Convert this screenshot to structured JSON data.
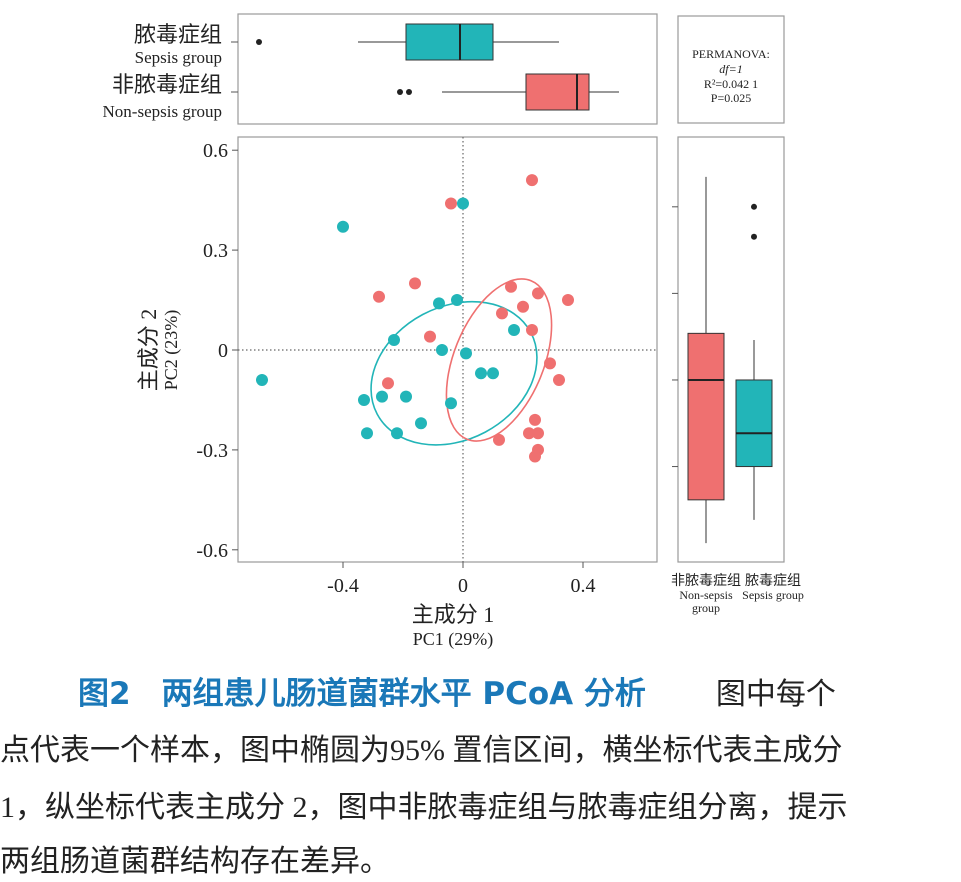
{
  "colors": {
    "sepsis": "#22b5b8",
    "nonsepsis": "#ef7070",
    "frame": "#9a9a9a",
    "caption_title": "#1a78b8"
  },
  "top_box": {
    "sepsis_cn": "脓毒症组",
    "sepsis_en": "Sepsis group",
    "nonsepsis_cn": "非脓毒症组",
    "nonsepsis_en": "Non-sepsis group"
  },
  "stats": {
    "title": "PERMANOVA:",
    "df": "df=1",
    "r2": "R²=0.042 1",
    "p": "P=0.025"
  },
  "axis": {
    "x_cn": "主成分 1",
    "x_en": "PC1 (29%)",
    "y_cn": "主成分 2",
    "y_en": "PC2 (23%)"
  },
  "right_box": {
    "nonsepsis_cn": "非脓毒症组",
    "nonsepsis_en1": "Non-sepsis",
    "nonsepsis_en2": "group",
    "sepsis_cn": "脓毒症组",
    "sepsis_en": "Sepsis group"
  },
  "caption": {
    "title": "图2　两组患儿肠道菌群水平 PCoA 分析",
    "line1_tail": "图中每个",
    "line2": "点代表一个样本，图中椭圆为95% 置信区间，横坐标代表主成分",
    "line3": "1，纵坐标代表主成分 2，图中非脓毒症组与脓毒症组分离，提示",
    "line4": "两组肠道菌群结构存在差异。"
  },
  "chart_data": {
    "type": "scatter",
    "xlabel": "主成分 1 PC1 (29%)",
    "ylabel": "主成分 2 PC2 (23%)",
    "xlim": [
      -0.68,
      0.72
    ],
    "ylim": [
      -0.64,
      0.64
    ],
    "xticks": [
      "-0.4",
      "0",
      "0.4"
    ],
    "xtick_values": [
      -0.4,
      0,
      0.4
    ],
    "yticks": [
      "0.6",
      "0.3",
      "0",
      "-0.3",
      "-0.6"
    ],
    "ytick_values": [
      0.6,
      0.3,
      0,
      -0.3,
      -0.6
    ],
    "series": [
      {
        "name": "Sepsis group",
        "color": "#22b5b8",
        "points": [
          [
            -0.4,
            0.37
          ],
          [
            0.0,
            0.44
          ],
          [
            -0.08,
            0.14
          ],
          [
            -0.02,
            0.15
          ],
          [
            -0.23,
            0.03
          ],
          [
            -0.07,
            0.0
          ],
          [
            0.01,
            -0.01
          ],
          [
            0.17,
            0.06
          ],
          [
            0.06,
            -0.07
          ],
          [
            0.1,
            -0.07
          ],
          [
            -0.67,
            -0.09
          ],
          [
            -0.33,
            -0.15
          ],
          [
            -0.27,
            -0.14
          ],
          [
            -0.19,
            -0.14
          ],
          [
            -0.04,
            -0.16
          ],
          [
            -0.14,
            -0.22
          ],
          [
            -0.32,
            -0.25
          ],
          [
            -0.22,
            -0.25
          ]
        ],
        "ellipse": {
          "cx": -0.03,
          "cy": -0.07,
          "rx": 0.58,
          "ry": 0.4,
          "angle_deg": -28
        }
      },
      {
        "name": "Non-sepsis group",
        "color": "#ef7070",
        "points": [
          [
            0.23,
            0.51
          ],
          [
            -0.04,
            0.44
          ],
          [
            -0.16,
            0.2
          ],
          [
            -0.28,
            0.16
          ],
          [
            0.16,
            0.19
          ],
          [
            0.25,
            0.17
          ],
          [
            0.35,
            0.15
          ],
          [
            0.2,
            0.13
          ],
          [
            0.13,
            0.11
          ],
          [
            0.23,
            0.06
          ],
          [
            -0.11,
            0.04
          ],
          [
            0.29,
            -0.04
          ],
          [
            0.32,
            -0.09
          ],
          [
            -0.25,
            -0.1
          ],
          [
            0.24,
            -0.21
          ],
          [
            0.22,
            -0.25
          ],
          [
            0.25,
            -0.25
          ],
          [
            0.12,
            -0.27
          ],
          [
            0.25,
            -0.3
          ],
          [
            0.24,
            -0.32
          ]
        ],
        "ellipse": {
          "cx": 0.12,
          "cy": -0.03,
          "rx": 0.57,
          "ry": 0.27,
          "angle_deg": -68
        }
      }
    ],
    "boxplot_pc1": {
      "sepsis": {
        "whisker_low": -0.35,
        "q1": -0.19,
        "median": -0.01,
        "q3": 0.1,
        "whisker_high": 0.32,
        "outliers": [
          -0.68
        ]
      },
      "nonsepsis": {
        "whisker_low": -0.07,
        "q1": 0.21,
        "median": 0.38,
        "q3": 0.42,
        "whisker_high": 0.52,
        "outliers": [
          -0.21,
          -0.18
        ]
      }
    },
    "boxplot_pc2": {
      "nonsepsis": {
        "whisker_low": -0.58,
        "q1": -0.45,
        "median": -0.09,
        "q3": 0.05,
        "whisker_high": 0.52,
        "outliers": []
      },
      "sepsis": {
        "whisker_low": -0.51,
        "q1": -0.35,
        "median": -0.25,
        "q3": -0.09,
        "whisker_high": 0.03,
        "outliers": [
          0.43,
          0.34
        ]
      }
    }
  }
}
